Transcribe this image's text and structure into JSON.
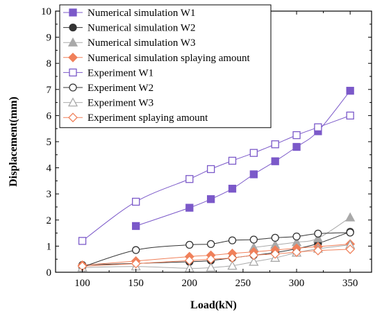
{
  "chart_data": {
    "type": "line",
    "xlabel": "Load(kN)",
    "ylabel": "Displacement(mm)",
    "xlim": [
      75,
      370
    ],
    "ylim": [
      0,
      10
    ],
    "xticks": [
      "100",
      "150",
      "200",
      "250",
      "300",
      "350"
    ],
    "yticks": [
      "0",
      "1",
      "2",
      "3",
      "4",
      "5",
      "6",
      "7",
      "8",
      "9",
      "10"
    ],
    "grid": false,
    "legend_position": "top-left",
    "series": [
      {
        "name": "Numerical simulation W1",
        "color": "#7b59c9",
        "marker": "square",
        "filled": true,
        "x": [
          150,
          200,
          220,
          240,
          260,
          280,
          300,
          320,
          350
        ],
        "y": [
          1.77,
          2.47,
          2.8,
          3.2,
          3.75,
          4.25,
          4.8,
          5.4,
          6.95
        ]
      },
      {
        "name": "Numerical simulation W2",
        "color": "#333333",
        "marker": "circle",
        "filled": true,
        "x": [
          100,
          200,
          220,
          240,
          260,
          280,
          300,
          320,
          350
        ],
        "y": [
          0.28,
          0.4,
          0.45,
          0.55,
          0.65,
          0.75,
          0.9,
          1.1,
          1.55
        ]
      },
      {
        "name": "Numerical simulation W3",
        "color": "#a9a9a9",
        "marker": "triangle",
        "filled": true,
        "x": [
          260,
          280,
          300,
          320,
          350
        ],
        "y": [
          0.95,
          1.05,
          1.15,
          1.3,
          2.1
        ]
      },
      {
        "name": "Numerical simulation splaying amount",
        "color": "#f0805a",
        "marker": "diamond",
        "filled": true,
        "x": [
          100,
          150,
          200,
          220,
          240,
          260,
          280,
          300,
          320,
          350
        ],
        "y": [
          0.27,
          0.43,
          0.6,
          0.65,
          0.72,
          0.78,
          0.85,
          0.92,
          0.98,
          1.08
        ]
      },
      {
        "name": "Experiment W1",
        "color": "#7b59c9",
        "marker": "square",
        "filled": false,
        "x": [
          100,
          150,
          200,
          220,
          240,
          260,
          280,
          300,
          320,
          350
        ],
        "y": [
          1.2,
          2.7,
          3.57,
          3.95,
          4.27,
          4.57,
          4.9,
          5.25,
          5.55,
          6.0
        ]
      },
      {
        "name": "Experiment W2",
        "color": "#333333",
        "marker": "circle",
        "filled": false,
        "x": [
          100,
          150,
          200,
          220,
          240,
          260,
          280,
          300,
          320,
          350
        ],
        "y": [
          0.2,
          0.85,
          1.05,
          1.08,
          1.22,
          1.25,
          1.32,
          1.37,
          1.48,
          1.52
        ]
      },
      {
        "name": "Experiment W3",
        "color": "#a9a9a9",
        "marker": "triangle",
        "filled": false,
        "x": [
          100,
          150,
          200,
          220,
          240,
          260,
          280,
          300,
          320,
          350
        ],
        "y": [
          0.18,
          0.22,
          0.15,
          0.18,
          0.25,
          0.4,
          0.55,
          0.75,
          0.9,
          1.05
        ]
      },
      {
        "name": "Experiment splaying amount",
        "color": "#f0805a",
        "marker": "diamond",
        "filled": false,
        "x": [
          100,
          150,
          200,
          220,
          240,
          260,
          280,
          300,
          320,
          350
        ],
        "y": [
          0.23,
          0.33,
          0.45,
          0.5,
          0.55,
          0.65,
          0.7,
          0.77,
          0.83,
          0.88
        ]
      }
    ]
  }
}
